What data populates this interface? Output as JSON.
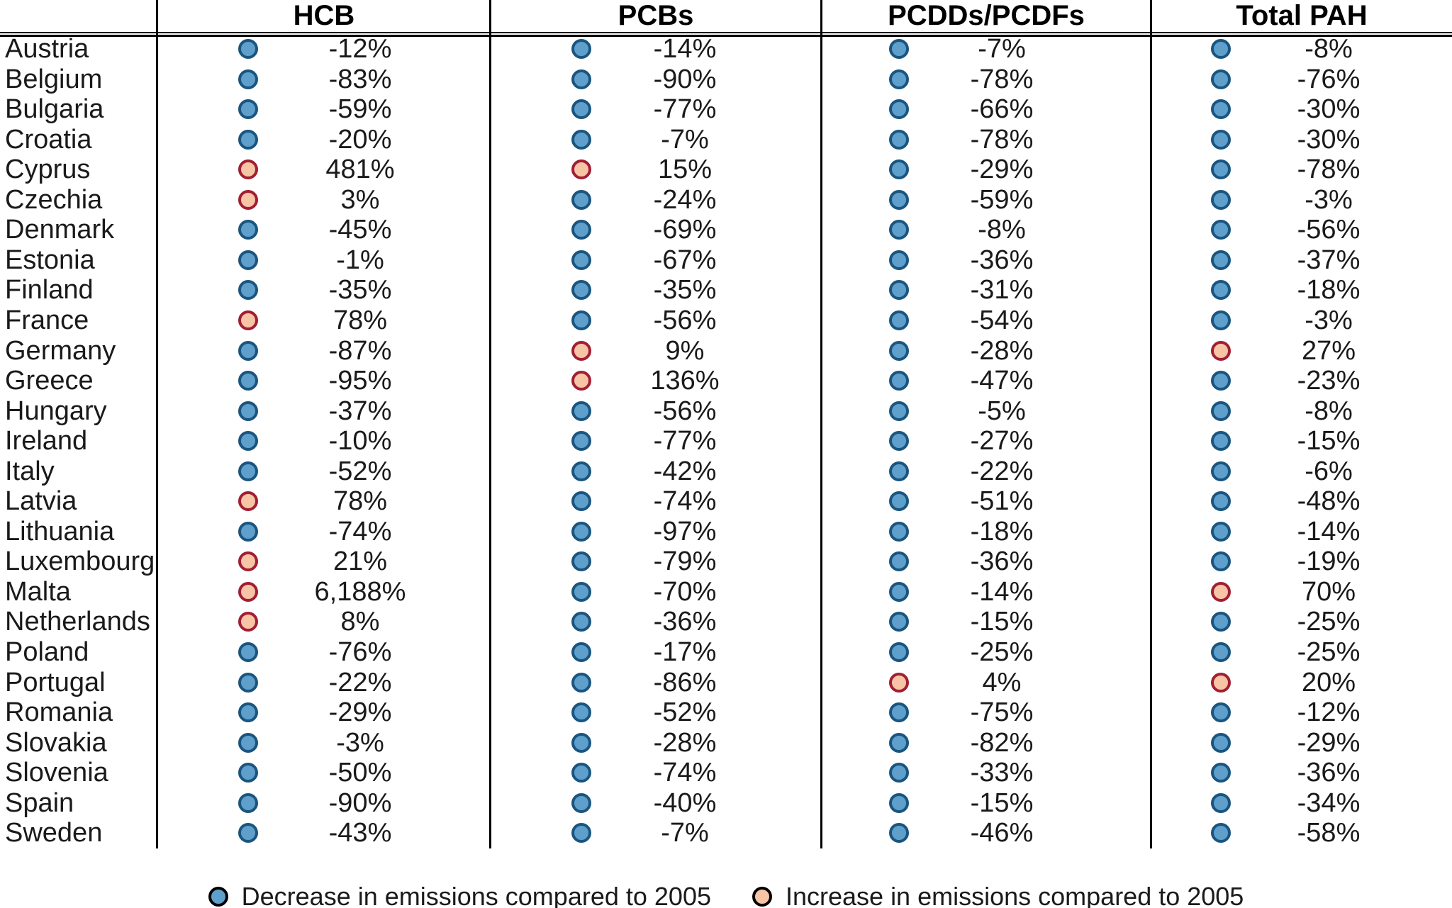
{
  "legend": {
    "decrease_label": "Decrease in emissions compared to 2005",
    "increase_label": "Increase in emissions compared to 2005"
  },
  "colors": {
    "decrease_fill": "#5F9FCC",
    "decrease_stroke": "#1A557F",
    "increase_fill": "#F7C4A6",
    "increase_stroke": "#A21E32",
    "line": "#000000",
    "text": "#1a1a1a"
  },
  "chart_data": {
    "type": "table",
    "title": "",
    "value_format": "percent change vs 2005",
    "legend_position": "bottom",
    "categories": [
      "Austria",
      "Belgium",
      "Bulgaria",
      "Croatia",
      "Cyprus",
      "Czechia",
      "Denmark",
      "Estonia",
      "Finland",
      "France",
      "Germany",
      "Greece",
      "Hungary",
      "Ireland",
      "Italy",
      "Latvia",
      "Lithuania",
      "Luxembourg",
      "Malta",
      "Netherlands",
      "Poland",
      "Portugal",
      "Romania",
      "Slovakia",
      "Slovenia",
      "Spain",
      "Sweden"
    ],
    "series": [
      {
        "name": "HCB",
        "values": [
          -12,
          -83,
          -59,
          -20,
          481,
          3,
          -45,
          -1,
          -35,
          78,
          -87,
          -95,
          -37,
          -10,
          -52,
          78,
          -74,
          21,
          6188,
          8,
          -76,
          -22,
          -29,
          -3,
          -50,
          -90,
          -43
        ]
      },
      {
        "name": "PCBs",
        "values": [
          -14,
          -90,
          -77,
          -7,
          15,
          -24,
          -69,
          -67,
          -35,
          -56,
          9,
          136,
          -56,
          -77,
          -42,
          -74,
          -97,
          -79,
          -70,
          -36,
          -17,
          -86,
          -52,
          -28,
          -74,
          -40,
          -7
        ]
      },
      {
        "name": "PCDDs/PCDFs",
        "values": [
          -7,
          -78,
          -66,
          -78,
          -29,
          -59,
          -8,
          -36,
          -31,
          -54,
          -28,
          -47,
          -5,
          -27,
          -22,
          -51,
          -18,
          -36,
          -14,
          -15,
          -25,
          4,
          -75,
          -82,
          -33,
          -15,
          -46
        ]
      },
      {
        "name": "Total PAH",
        "values": [
          -8,
          -76,
          -30,
          -30,
          -78,
          -3,
          -56,
          -37,
          -18,
          -3,
          27,
          -23,
          -8,
          -15,
          -6,
          -48,
          -14,
          -19,
          70,
          -25,
          -25,
          20,
          -12,
          -29,
          -36,
          -34,
          -58
        ]
      }
    ]
  }
}
